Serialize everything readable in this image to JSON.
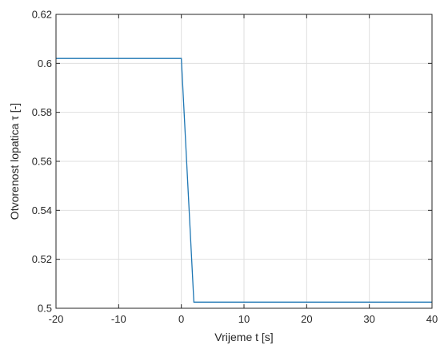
{
  "chart_data": {
    "type": "line",
    "xlabel": "Vrijeme t [s]",
    "ylabel": "Otvorenost lopatica τ [-]",
    "xlim": [
      -20,
      40
    ],
    "ylim": [
      0.5,
      0.62
    ],
    "xticks": [
      -20,
      -10,
      0,
      10,
      20,
      30,
      40
    ],
    "xtick_labels": [
      "-20",
      "-10",
      "0",
      "10",
      "20",
      "30",
      "40"
    ],
    "yticks": [
      0.5,
      0.52,
      0.54,
      0.56,
      0.58,
      0.6,
      0.62
    ],
    "ytick_labels": [
      "0.5",
      "0.52",
      "0.54",
      "0.56",
      "0.58",
      "0.6",
      "0.62"
    ],
    "grid": true,
    "series": [
      {
        "color": "#1f77b4",
        "x": [
          -20,
          0,
          2,
          40
        ],
        "y": [
          0.602,
          0.602,
          0.5025,
          0.5025
        ]
      }
    ]
  }
}
